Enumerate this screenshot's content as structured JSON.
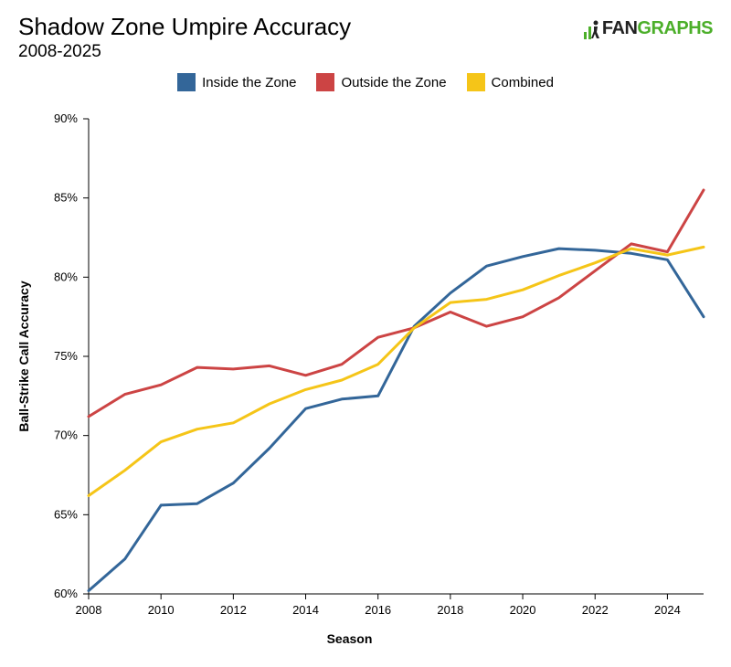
{
  "header": {
    "title": "Shadow Zone Umpire Accuracy",
    "subtitle": "2008-2025",
    "logo_fan": "FAN",
    "logo_graphs": "GRAPHS"
  },
  "chart_data": {
    "type": "line",
    "xlabel": "Season",
    "ylabel": "Ball-Strike Call Accuracy",
    "xlim": [
      2008,
      2025
    ],
    "ylim": [
      60,
      90
    ],
    "x_ticks": [
      2008,
      2010,
      2012,
      2014,
      2016,
      2018,
      2020,
      2022,
      2024
    ],
    "y_ticks": [
      60,
      65,
      70,
      75,
      80,
      85,
      90
    ],
    "y_tick_labels": [
      "60%",
      "65%",
      "70%",
      "75%",
      "80%",
      "85%",
      "90%"
    ],
    "legend_position": "top-center",
    "x": [
      2008,
      2009,
      2010,
      2011,
      2012,
      2013,
      2014,
      2015,
      2016,
      2017,
      2018,
      2019,
      2020,
      2021,
      2022,
      2023,
      2024,
      2025
    ],
    "series": [
      {
        "name": "Inside the Zone",
        "color": "#336699",
        "values": [
          60.2,
          62.2,
          65.6,
          65.7,
          67.0,
          69.2,
          71.7,
          72.3,
          72.5,
          76.9,
          79.0,
          80.7,
          81.3,
          81.8,
          81.7,
          81.5,
          81.1,
          77.5
        ]
      },
      {
        "name": "Outside the Zone",
        "color": "#cc4444",
        "values": [
          71.2,
          72.6,
          73.2,
          74.3,
          74.2,
          74.4,
          73.8,
          74.5,
          76.2,
          76.8,
          77.8,
          76.9,
          77.5,
          78.7,
          80.4,
          82.1,
          81.6,
          85.5
        ]
      },
      {
        "name": "Combined",
        "color": "#f5c518",
        "values": [
          66.2,
          67.8,
          69.6,
          70.4,
          70.8,
          72.0,
          72.9,
          73.5,
          74.5,
          76.8,
          78.4,
          78.6,
          79.2,
          80.1,
          80.9,
          81.8,
          81.4,
          81.9
        ]
      }
    ]
  }
}
